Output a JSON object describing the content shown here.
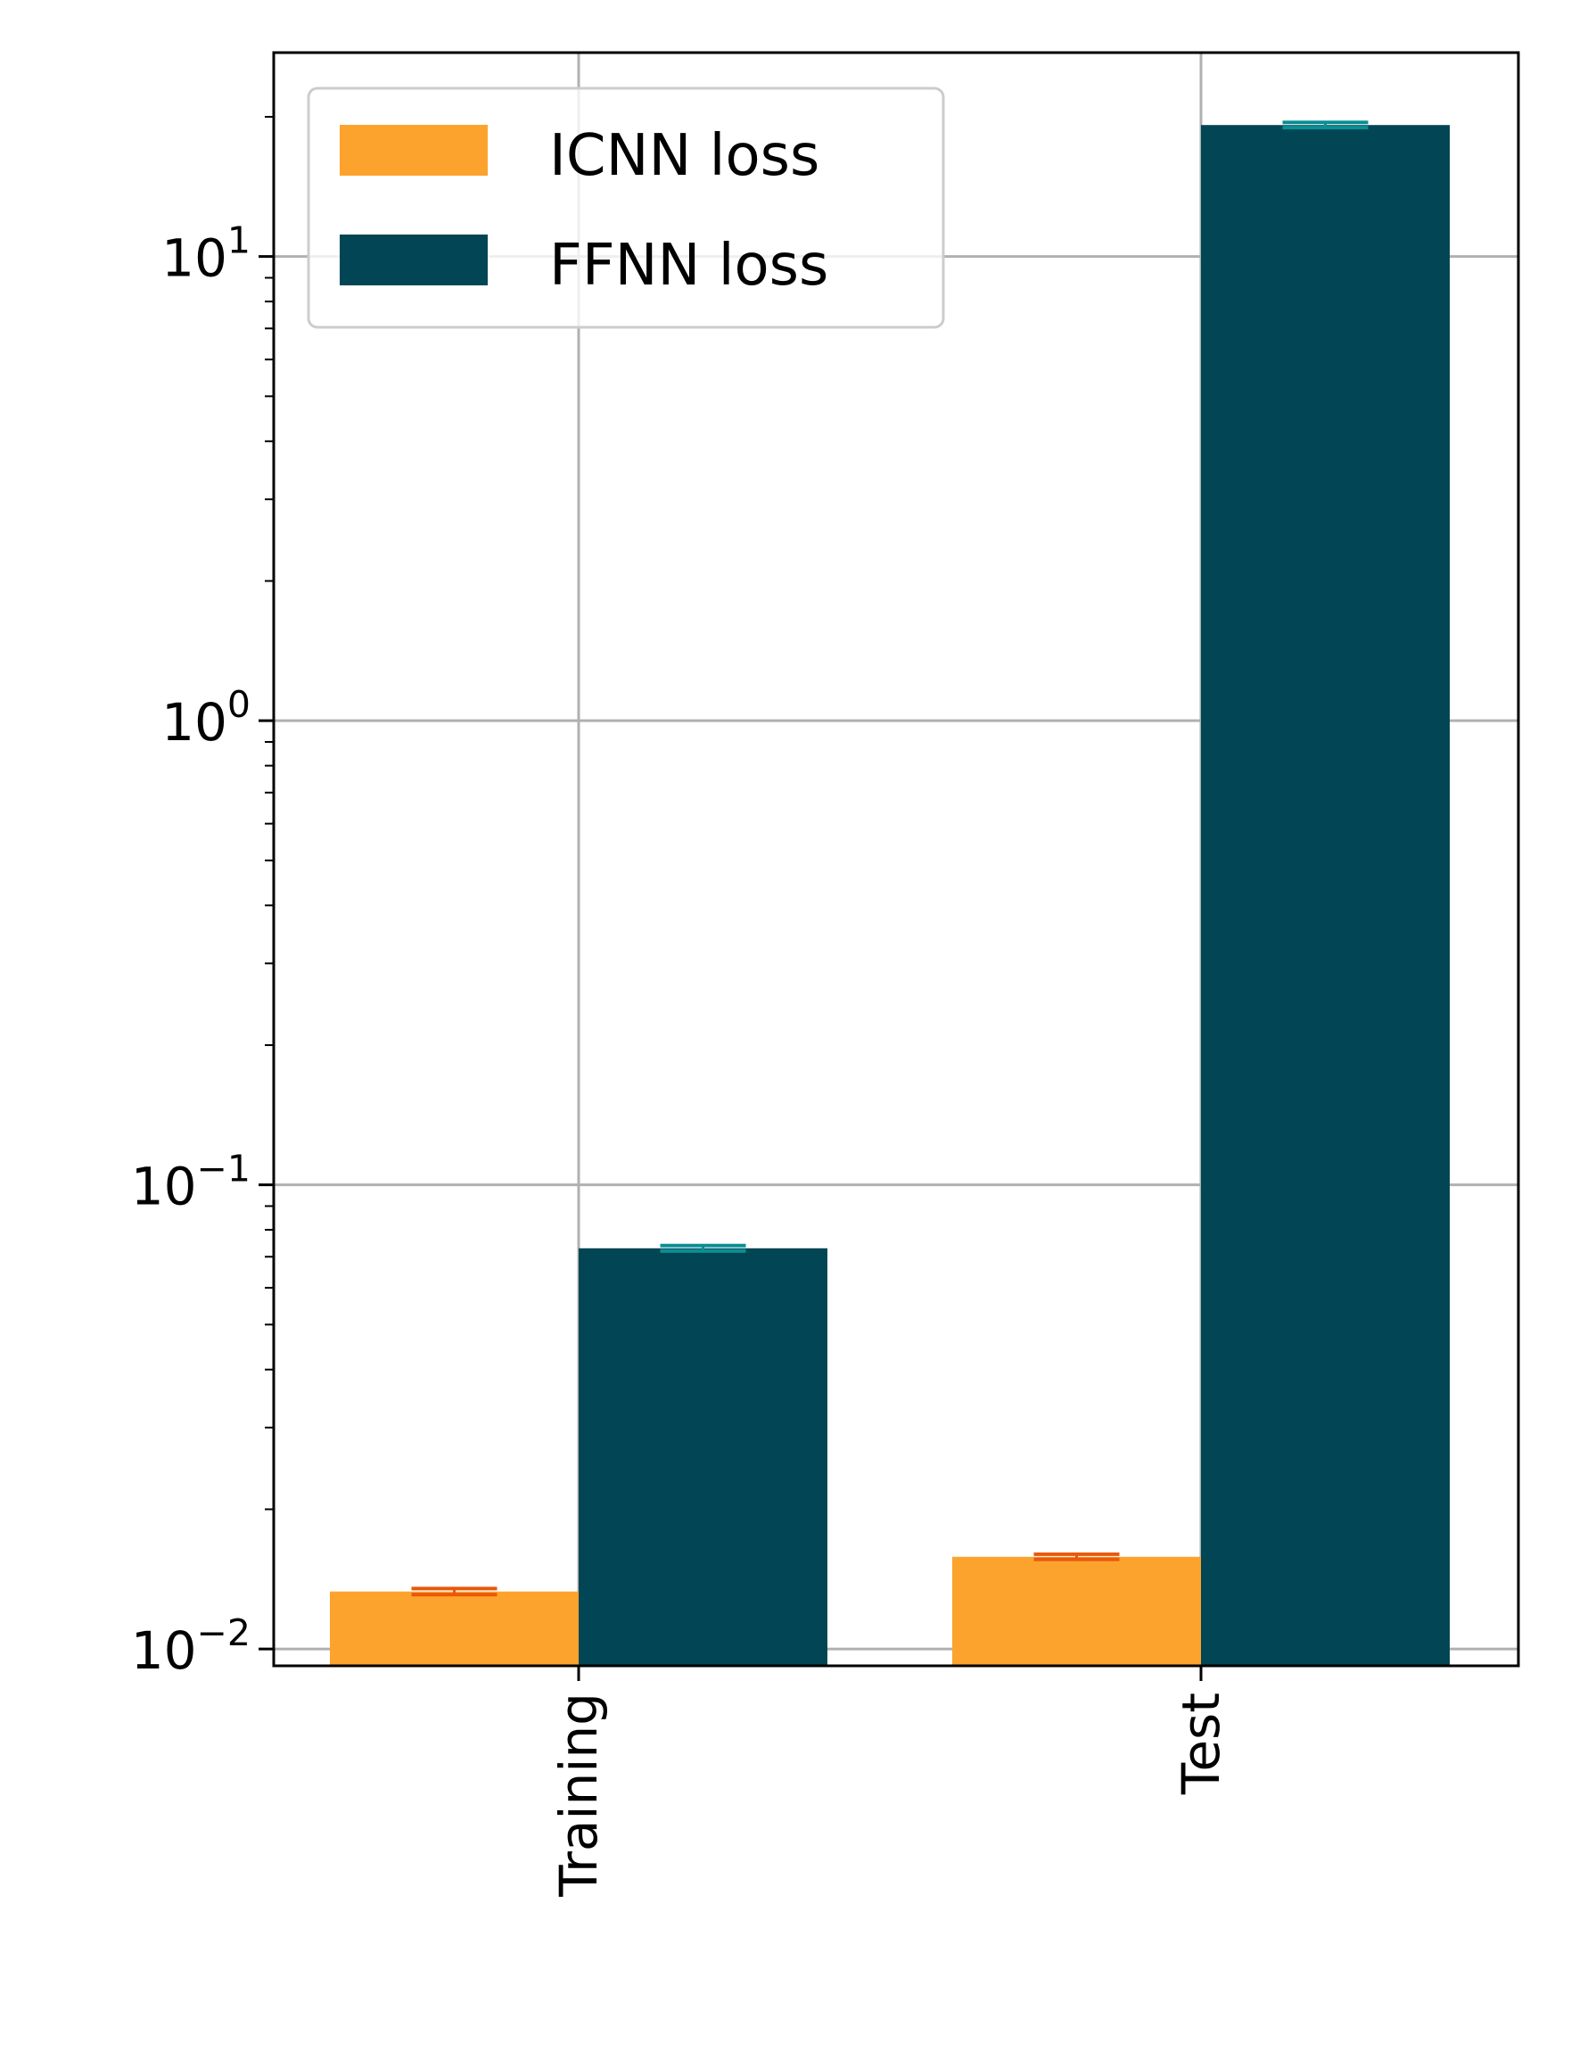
{
  "chart_data": {
    "type": "bar",
    "categories": [
      "Training",
      "Test"
    ],
    "series": [
      {
        "name": "ICNN loss",
        "values": [
          0.0133,
          0.0158
        ],
        "error": [
          0.0002,
          0.0002
        ]
      },
      {
        "name": "FFNN loss",
        "values": [
          0.073,
          19.2
        ],
        "error": [
          0.001,
          0.25
        ]
      }
    ],
    "title": "",
    "xlabel": "",
    "ylabel": "",
    "yscale": "log",
    "ylim": [
      0.0092,
      27.5
    ],
    "ytick_values": [
      0.01,
      0.1,
      1,
      10
    ],
    "ytick_labels": [
      {
        "base": "10",
        "exp": "−2"
      },
      {
        "base": "10",
        "exp": "−1"
      },
      {
        "base": "10",
        "exp": "0"
      },
      {
        "base": "10",
        "exp": "1"
      }
    ],
    "grid": true,
    "legend_position": "top-left",
    "colors": {
      "ICNN loss": "#fca32d",
      "FFNN loss": "#024554",
      "ICNN error": "#e8580c",
      "FFNN error": "#0a8f94",
      "grid": "#b0b0b0"
    }
  }
}
